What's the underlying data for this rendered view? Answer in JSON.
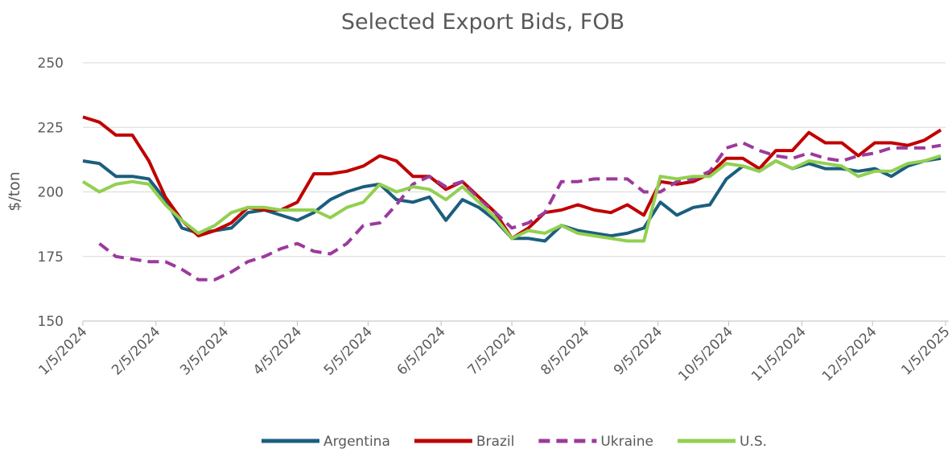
{
  "chart_data": {
    "type": "line",
    "title": "Selected Export Bids, FOB",
    "y_label": "$/ton",
    "xlim": [
      "1/5/2024",
      "1/5/2025"
    ],
    "xticks": [
      "1/5/2024",
      "2/5/2024",
      "3/5/2024",
      "4/5/2024",
      "5/5/2024",
      "6/5/2024",
      "7/5/2024",
      "8/5/2024",
      "9/5/2024",
      "10/5/2024",
      "11/5/2024",
      "12/5/2024",
      "1/5/2025"
    ],
    "ylim": [
      150,
      250
    ],
    "yticks": [
      150,
      175,
      200,
      225,
      250
    ],
    "grid": true,
    "legend": "bottom",
    "x": [
      "1/5/2024",
      "1/12/2024",
      "1/19/2024",
      "1/26/2024",
      "2/2/2024",
      "2/9/2024",
      "2/16/2024",
      "2/23/2024",
      "3/1/2024",
      "3/8/2024",
      "3/15/2024",
      "3/22/2024",
      "3/29/2024",
      "4/5/2024",
      "4/12/2024",
      "4/19/2024",
      "4/26/2024",
      "5/3/2024",
      "5/10/2024",
      "5/17/2024",
      "5/24/2024",
      "5/31/2024",
      "6/7/2024",
      "6/14/2024",
      "6/21/2024",
      "6/28/2024",
      "7/5/2024",
      "7/12/2024",
      "7/19/2024",
      "7/26/2024",
      "8/2/2024",
      "8/9/2024",
      "8/16/2024",
      "8/23/2024",
      "8/30/2024",
      "9/6/2024",
      "9/13/2024",
      "9/20/2024",
      "9/27/2024",
      "10/4/2024",
      "10/11/2024",
      "10/18/2024",
      "10/25/2024",
      "11/1/2024",
      "11/8/2024",
      "11/15/2024",
      "11/22/2024",
      "11/29/2024",
      "12/6/2024",
      "12/13/2024",
      "12/20/2024",
      "12/27/2024",
      "1/3/2025"
    ],
    "series": [
      {
        "name": "Argentina",
        "color": "#1b5e7e",
        "dashed": false,
        "values": [
          212,
          211,
          206,
          206,
          205,
          197,
          186,
          184,
          185,
          186,
          192,
          193,
          191,
          189,
          192,
          197,
          200,
          202,
          203,
          197,
          196,
          198,
          189,
          197,
          194,
          189,
          182,
          182,
          181,
          187,
          185,
          184,
          183,
          184,
          186,
          196,
          191,
          194,
          195,
          205,
          210,
          208,
          212,
          209,
          211,
          209,
          209,
          208,
          209,
          206,
          210,
          212,
          213
        ]
      },
      {
        "name": "Brazil",
        "color": "#c00000",
        "dashed": false,
        "values": [
          229,
          227,
          222,
          222,
          212,
          198,
          189,
          183,
          185,
          188,
          194,
          193,
          193,
          196,
          207,
          207,
          208,
          210,
          214,
          212,
          206,
          206,
          201,
          204,
          198,
          192,
          182,
          186,
          192,
          193,
          195,
          193,
          192,
          195,
          191,
          204,
          203,
          204,
          207,
          213,
          213,
          209,
          216,
          216,
          223,
          219,
          219,
          214,
          219,
          219,
          218,
          220,
          224
        ]
      },
      {
        "name": "Ukraine",
        "color": "#9b3a9c",
        "dashed": true,
        "values": [
          null,
          180,
          175,
          174,
          173,
          173,
          170,
          166,
          166,
          169,
          173,
          175,
          178,
          180,
          177,
          176,
          180,
          187,
          188,
          195,
          203,
          206,
          202,
          204,
          197,
          192,
          186,
          188,
          192,
          204,
          204,
          205,
          205,
          205,
          200,
          200,
          204,
          205,
          208,
          217,
          219,
          216,
          214,
          213,
          215,
          213,
          212,
          214,
          215,
          217,
          217,
          217,
          218
        ]
      },
      {
        "name": "U.S.",
        "color": "#92d050",
        "dashed": false,
        "values": [
          204,
          200,
          203,
          204,
          203,
          195,
          189,
          184,
          187,
          192,
          194,
          194,
          193,
          193,
          193,
          190,
          194,
          196,
          203,
          200,
          202,
          201,
          197,
          202,
          196,
          190,
          182,
          185,
          184,
          187,
          184,
          183,
          182,
          181,
          181,
          206,
          205,
          206,
          206,
          211,
          210,
          208,
          212,
          209,
          212,
          211,
          210,
          206,
          208,
          208,
          211,
          212,
          214
        ]
      }
    ]
  }
}
